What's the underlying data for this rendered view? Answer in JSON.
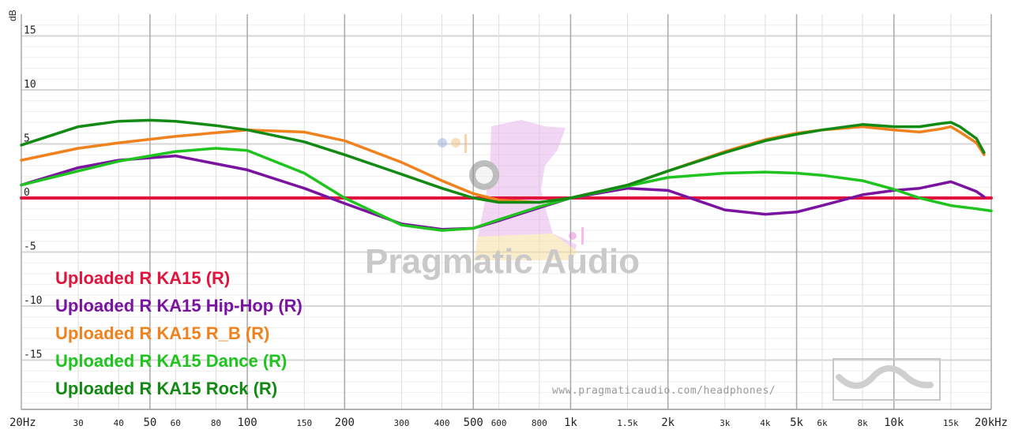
{
  "watermark": {
    "brand": "Pragmatic Audio",
    "url": "www.pragmaticaudio.com/headphones/"
  },
  "chart_data": {
    "type": "line",
    "xscale": "log",
    "xlim": [
      20,
      20000
    ],
    "ylim": [
      -20,
      16
    ],
    "ylabel": "dB",
    "grid": true,
    "x_ticks": [
      {
        "v": 20,
        "label": "20Hz",
        "major": true
      },
      {
        "v": 30,
        "label": "30"
      },
      {
        "v": 40,
        "label": "40"
      },
      {
        "v": 50,
        "label": "50",
        "major": true
      },
      {
        "v": 60,
        "label": "60"
      },
      {
        "v": 80,
        "label": "80"
      },
      {
        "v": 100,
        "label": "100",
        "major": true
      },
      {
        "v": 150,
        "label": "150"
      },
      {
        "v": 200,
        "label": "200",
        "major": true
      },
      {
        "v": 300,
        "label": "300"
      },
      {
        "v": 400,
        "label": "400"
      },
      {
        "v": 500,
        "label": "500",
        "major": true
      },
      {
        "v": 600,
        "label": "600"
      },
      {
        "v": 800,
        "label": "800"
      },
      {
        "v": 1000,
        "label": "1k",
        "major": true
      },
      {
        "v": 1500,
        "label": "1.5k"
      },
      {
        "v": 2000,
        "label": "2k",
        "major": true
      },
      {
        "v": 3000,
        "label": "3k"
      },
      {
        "v": 4000,
        "label": "4k"
      },
      {
        "v": 5000,
        "label": "5k",
        "major": true
      },
      {
        "v": 6000,
        "label": "6k"
      },
      {
        "v": 8000,
        "label": "8k"
      },
      {
        "v": 10000,
        "label": "10k",
        "major": true
      },
      {
        "v": 15000,
        "label": "15k"
      },
      {
        "v": 20000,
        "label": "20kHz",
        "major": true
      }
    ],
    "y_ticks": [
      {
        "v": 15,
        "label": "15"
      },
      {
        "v": 10,
        "label": "10"
      },
      {
        "v": 5,
        "label": "5"
      },
      {
        "v": 0,
        "label": "0"
      },
      {
        "v": -5,
        "label": "-5"
      },
      {
        "v": -10,
        "label": "-10"
      },
      {
        "v": -15,
        "label": "-15"
      }
    ],
    "series": [
      {
        "name": "Uploaded R KA15 (R)",
        "color": "#e0143c",
        "x": [
          20,
          20000
        ],
        "y": [
          0,
          0
        ]
      },
      {
        "name": "Uploaded R KA15 Hip-Hop (R)",
        "color": "#7a13a0",
        "x": [
          20,
          30,
          40,
          60,
          100,
          150,
          200,
          300,
          400,
          500,
          600,
          800,
          1000,
          1500,
          2000,
          3000,
          4000,
          5000,
          6000,
          8000,
          10000,
          12000,
          15000,
          16000,
          18000,
          19000
        ],
        "y": [
          1.2,
          2.8,
          3.5,
          3.9,
          2.6,
          0.9,
          -0.5,
          -2.4,
          -2.9,
          -2.8,
          -2.1,
          -0.9,
          0,
          0.9,
          0.7,
          -1.1,
          -1.5,
          -1.3,
          -0.7,
          0.3,
          0.7,
          0.9,
          1.5,
          1.2,
          0.6,
          0.1
        ]
      },
      {
        "name": "Uploaded R KA15 R_B (R)",
        "color": "#f0821e",
        "x": [
          20,
          30,
          40,
          60,
          100,
          150,
          200,
          300,
          400,
          500,
          600,
          800,
          1000,
          1500,
          2000,
          3000,
          4000,
          5000,
          6000,
          8000,
          10000,
          12000,
          14000,
          15000,
          16000,
          18000,
          19000
        ],
        "y": [
          3.5,
          4.6,
          5.1,
          5.7,
          6.3,
          6.1,
          5.3,
          3.3,
          1.6,
          0.4,
          -0.2,
          -0.4,
          0,
          1.2,
          2.5,
          4.3,
          5.4,
          6.0,
          6.3,
          6.6,
          6.3,
          6.1,
          6.4,
          6.6,
          6.1,
          5.1,
          4.0
        ]
      },
      {
        "name": "Uploaded R KA15 Dance (R)",
        "color": "#1fc41f",
        "x": [
          20,
          30,
          40,
          60,
          80,
          100,
          150,
          200,
          300,
          400,
          500,
          600,
          800,
          1000,
          1500,
          2000,
          3000,
          4000,
          5000,
          6000,
          8000,
          10000,
          12000,
          15000,
          18000,
          20000
        ],
        "y": [
          1.2,
          2.5,
          3.4,
          4.3,
          4.6,
          4.4,
          2.3,
          0,
          -2.5,
          -3.0,
          -2.8,
          -2.0,
          -0.8,
          0,
          1.1,
          1.9,
          2.3,
          2.4,
          2.3,
          2.1,
          1.6,
          0.8,
          0,
          -0.7,
          -1.0,
          -1.2
        ]
      },
      {
        "name": "Uploaded R KA15 Rock (R)",
        "color": "#138a13",
        "x": [
          20,
          30,
          40,
          50,
          60,
          80,
          100,
          150,
          200,
          300,
          400,
          500,
          600,
          800,
          1000,
          1500,
          2000,
          3000,
          4000,
          5000,
          6000,
          8000,
          10000,
          12000,
          14000,
          15000,
          16000,
          18000,
          19000
        ],
        "y": [
          4.9,
          6.6,
          7.1,
          7.2,
          7.1,
          6.7,
          6.3,
          5.2,
          4.0,
          2.2,
          0.9,
          0,
          -0.4,
          -0.4,
          0,
          1.2,
          2.5,
          4.2,
          5.3,
          5.9,
          6.3,
          6.8,
          6.6,
          6.6,
          6.9,
          7.0,
          6.6,
          5.5,
          4.2
        ]
      }
    ]
  }
}
